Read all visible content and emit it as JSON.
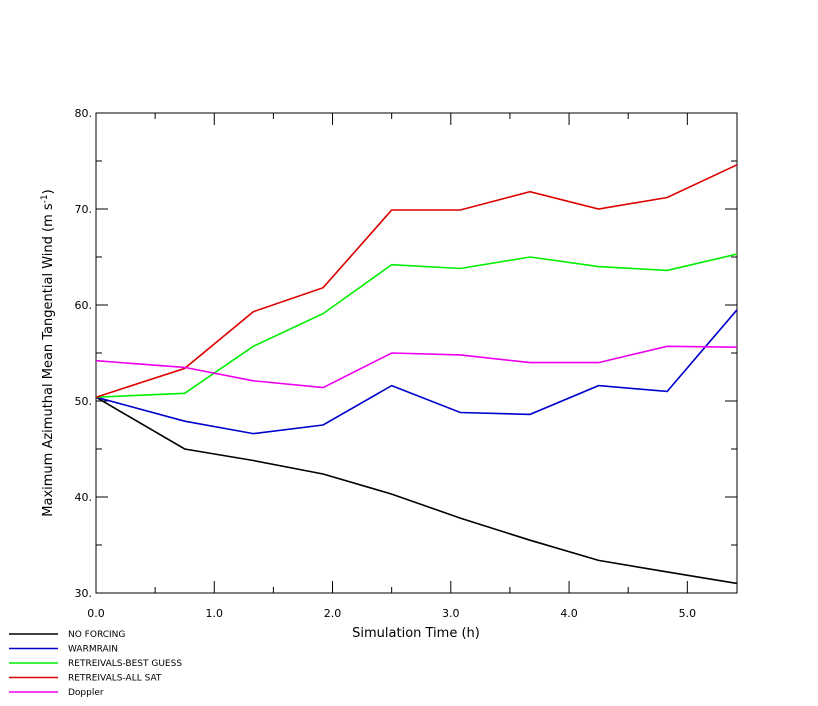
{
  "chart_data": {
    "type": "line",
    "title": "",
    "xlabel": "Simulation Time (h)",
    "ylabel_main": "Maximum Azimuthal Mean Tangential Wind  (m s",
    "ylabel_sup": "-1",
    "ylabel_end": ")",
    "xlim": [
      0.0,
      5.42
    ],
    "ylim": [
      30,
      80
    ],
    "x_ticks": [
      0.0,
      1.0,
      2.0,
      3.0,
      4.0,
      5.0
    ],
    "x_tick_labels": [
      "0.0",
      "1.0",
      "2.0",
      "3.0",
      "4.0",
      "5.0"
    ],
    "y_ticks": [
      30,
      40,
      50,
      60,
      70,
      80
    ],
    "y_tick_labels": [
      "30.",
      "40.",
      "50.",
      "60.",
      "70.",
      "80."
    ],
    "grid": false,
    "legend_placement": "below-left",
    "x": [
      0.0,
      0.75,
      1.33,
      1.92,
      2.5,
      3.08,
      3.67,
      4.25,
      4.83,
      5.42
    ],
    "series": [
      {
        "name": "NO FORCING",
        "color": "#000000",
        "values": [
          50.4,
          45.0,
          43.8,
          42.4,
          40.3,
          37.8,
          35.5,
          33.4,
          32.2,
          31.0
        ]
      },
      {
        "name": "WARMRAIN",
        "color": "#0000cc",
        "values": [
          50.4,
          47.9,
          46.6,
          47.5,
          51.6,
          48.8,
          48.6,
          51.6,
          51.0,
          59.5
        ]
      },
      {
        "name": "RETREIVALS-BEST GUESS",
        "color": "#00ee00",
        "values": [
          50.4,
          50.8,
          55.7,
          59.1,
          64.2,
          63.8,
          65.0,
          64.0,
          63.6,
          65.3
        ]
      },
      {
        "name": "RETREIVALS-ALL SAT",
        "color": "#dd0000",
        "values": [
          50.4,
          53.4,
          59.3,
          61.8,
          69.9,
          69.9,
          71.8,
          70.0,
          71.2,
          74.6
        ]
      },
      {
        "name": "Doppler",
        "color": "#ee00ee",
        "values": [
          54.2,
          53.5,
          52.1,
          51.4,
          55.0,
          54.8,
          54.0,
          54.0,
          55.7,
          55.6
        ]
      }
    ]
  }
}
